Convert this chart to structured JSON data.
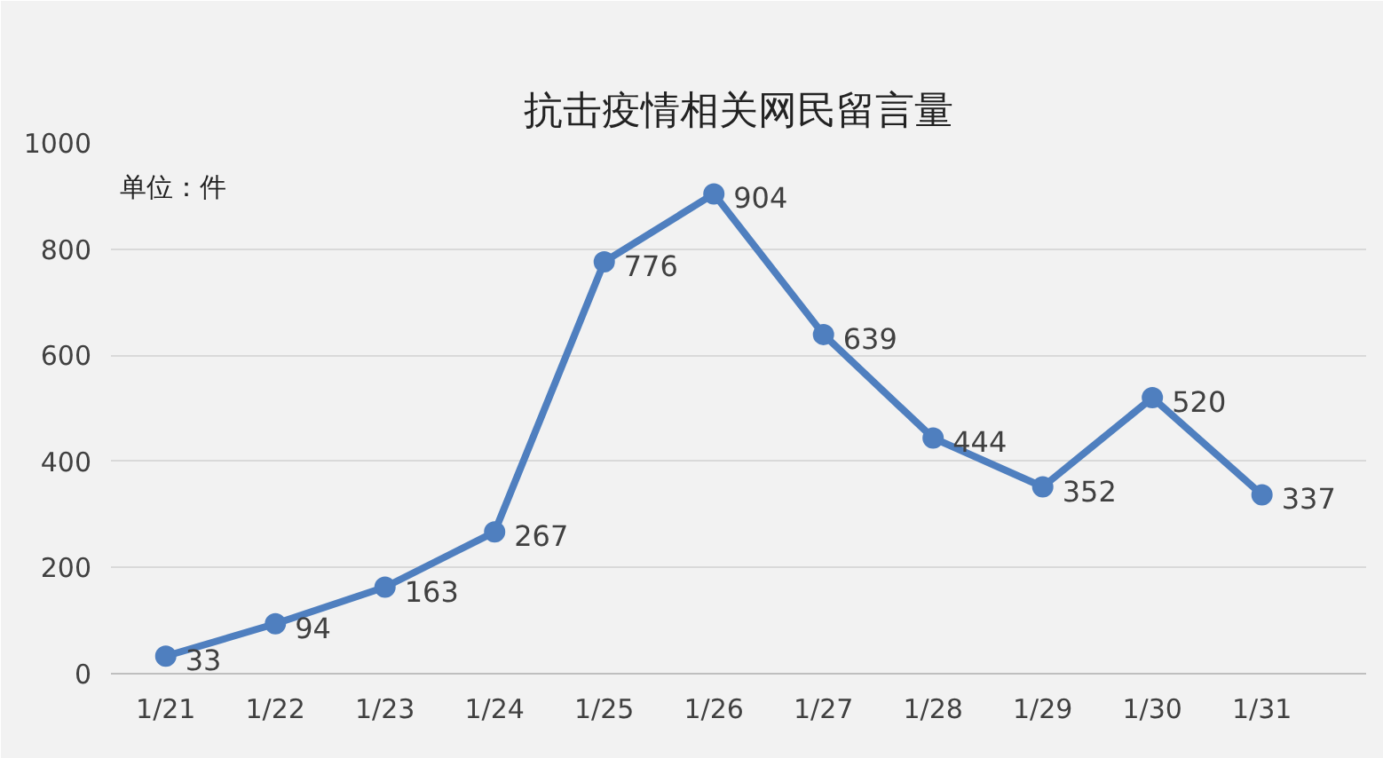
{
  "chart_data": {
    "type": "line",
    "title": "抗击疫情相关网民留言量",
    "categories": [
      "1/21",
      "1/22",
      "1/23",
      "1/24",
      "1/25",
      "1/26",
      "1/27",
      "1/28",
      "1/29",
      "1/30",
      "1/31"
    ],
    "series": [
      {
        "color": "#4f7fbf",
        "values": [
          33,
          94,
          163,
          267,
          776,
          904,
          639,
          444,
          352,
          520,
          337
        ]
      }
    ],
    "ylim": [
      0,
      1000
    ],
    "yticks": [
      0,
      200,
      400,
      600,
      800,
      1000
    ],
    "grid": "y",
    "marker": "circle",
    "line_style": "solid",
    "data_labels": true,
    "annotations": [
      "单位：件"
    ]
  }
}
